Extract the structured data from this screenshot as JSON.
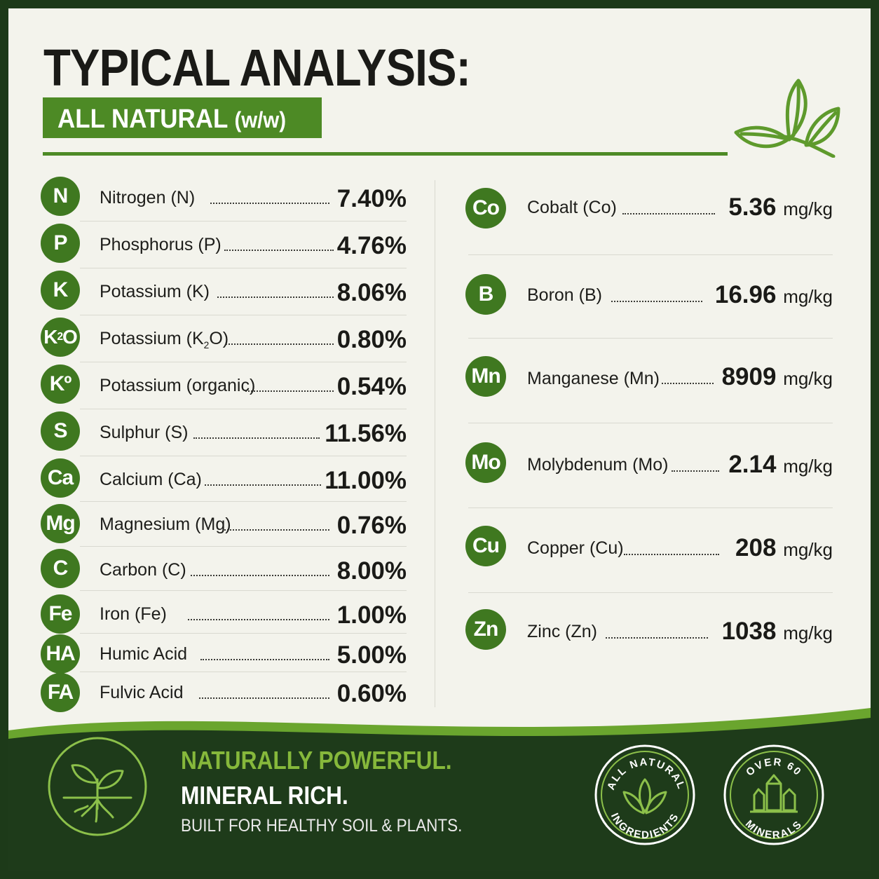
{
  "header": {
    "title": "TYPICAL ANALYSIS:",
    "subtitle_main": "ALL NATURAL",
    "subtitle_unit": "(w/w)"
  },
  "left_nutrients": [
    {
      "badge": "N",
      "name": "Nitrogen (N)",
      "value": "7.40%"
    },
    {
      "badge": "P",
      "name": "Phosphorus (P)",
      "value": "4.76%"
    },
    {
      "badge": "K",
      "name": "Potassium (K)",
      "value": "8.06%"
    },
    {
      "badge_main": "K",
      "badge_sub": "2",
      "badge_end": "O",
      "name_main": "Potassium (K",
      "name_sub": "2",
      "name_end": "O)",
      "value": "0.80%"
    },
    {
      "badge": "Kº",
      "name": "Potassium (organic)",
      "value": "0.54%"
    },
    {
      "badge": "S",
      "name": "Sulphur (S)",
      "value": "11.56%"
    },
    {
      "badge": "Ca",
      "name": "Calcium (Ca)",
      "value": "11.00%"
    },
    {
      "badge": "Mg",
      "name": "Magnesium (Mg)",
      "value": "0.76%"
    },
    {
      "badge": "C",
      "name": "Carbon (C)",
      "value": "8.00%"
    },
    {
      "badge": "Fe",
      "name": "Iron (Fe)",
      "value": "1.00%"
    },
    {
      "badge": "HA",
      "name": "Humic Acid",
      "value": "5.00%"
    },
    {
      "badge": "FA",
      "name": "Fulvic Acid",
      "value": "0.60%"
    }
  ],
  "right_nutrients": [
    {
      "badge": "Co",
      "name": "Cobalt (Co)",
      "value": "5.36",
      "unit": "mg/kg"
    },
    {
      "badge": "B",
      "name": "Boron (B)",
      "value": "16.96",
      "unit": "mg/kg"
    },
    {
      "badge": "Mn",
      "name": "Manganese (Mn)",
      "value": "8909",
      "unit": "mg/kg"
    },
    {
      "badge": "Mo",
      "name": "Molybdenum (Mo)",
      "value": "2.14",
      "unit": "mg/kg"
    },
    {
      "badge": "Cu",
      "name": "Copper (Cu)",
      "value": "208",
      "unit": "mg/kg"
    },
    {
      "badge": "Zn",
      "name": "Zinc (Zn)",
      "value": "1038",
      "unit": "mg/kg"
    }
  ],
  "footer": {
    "line1": "NATURALLY POWERFUL.",
    "line2": "MINERAL RICH.",
    "line3": "BUILT FOR HEALTHY SOIL & PLANTS.",
    "seal1_top": "ALL NATURAL",
    "seal1_bottom": "INGREDIENTS",
    "seal2_top": "OVER 60",
    "seal2_bottom": "MINERALS"
  },
  "colors": {
    "accent_green": "#4d8a25",
    "badge_green": "#3f7820",
    "light_green": "#86b83b",
    "dark_green": "#1e3b1a",
    "panel": "#f3f3ec"
  },
  "icons": {
    "header_leaf": "leaf-sprig-icon",
    "footer_sprout": "sprout-icon",
    "seal1_icon": "leaves-icon",
    "seal2_icon": "crystal-icon"
  }
}
